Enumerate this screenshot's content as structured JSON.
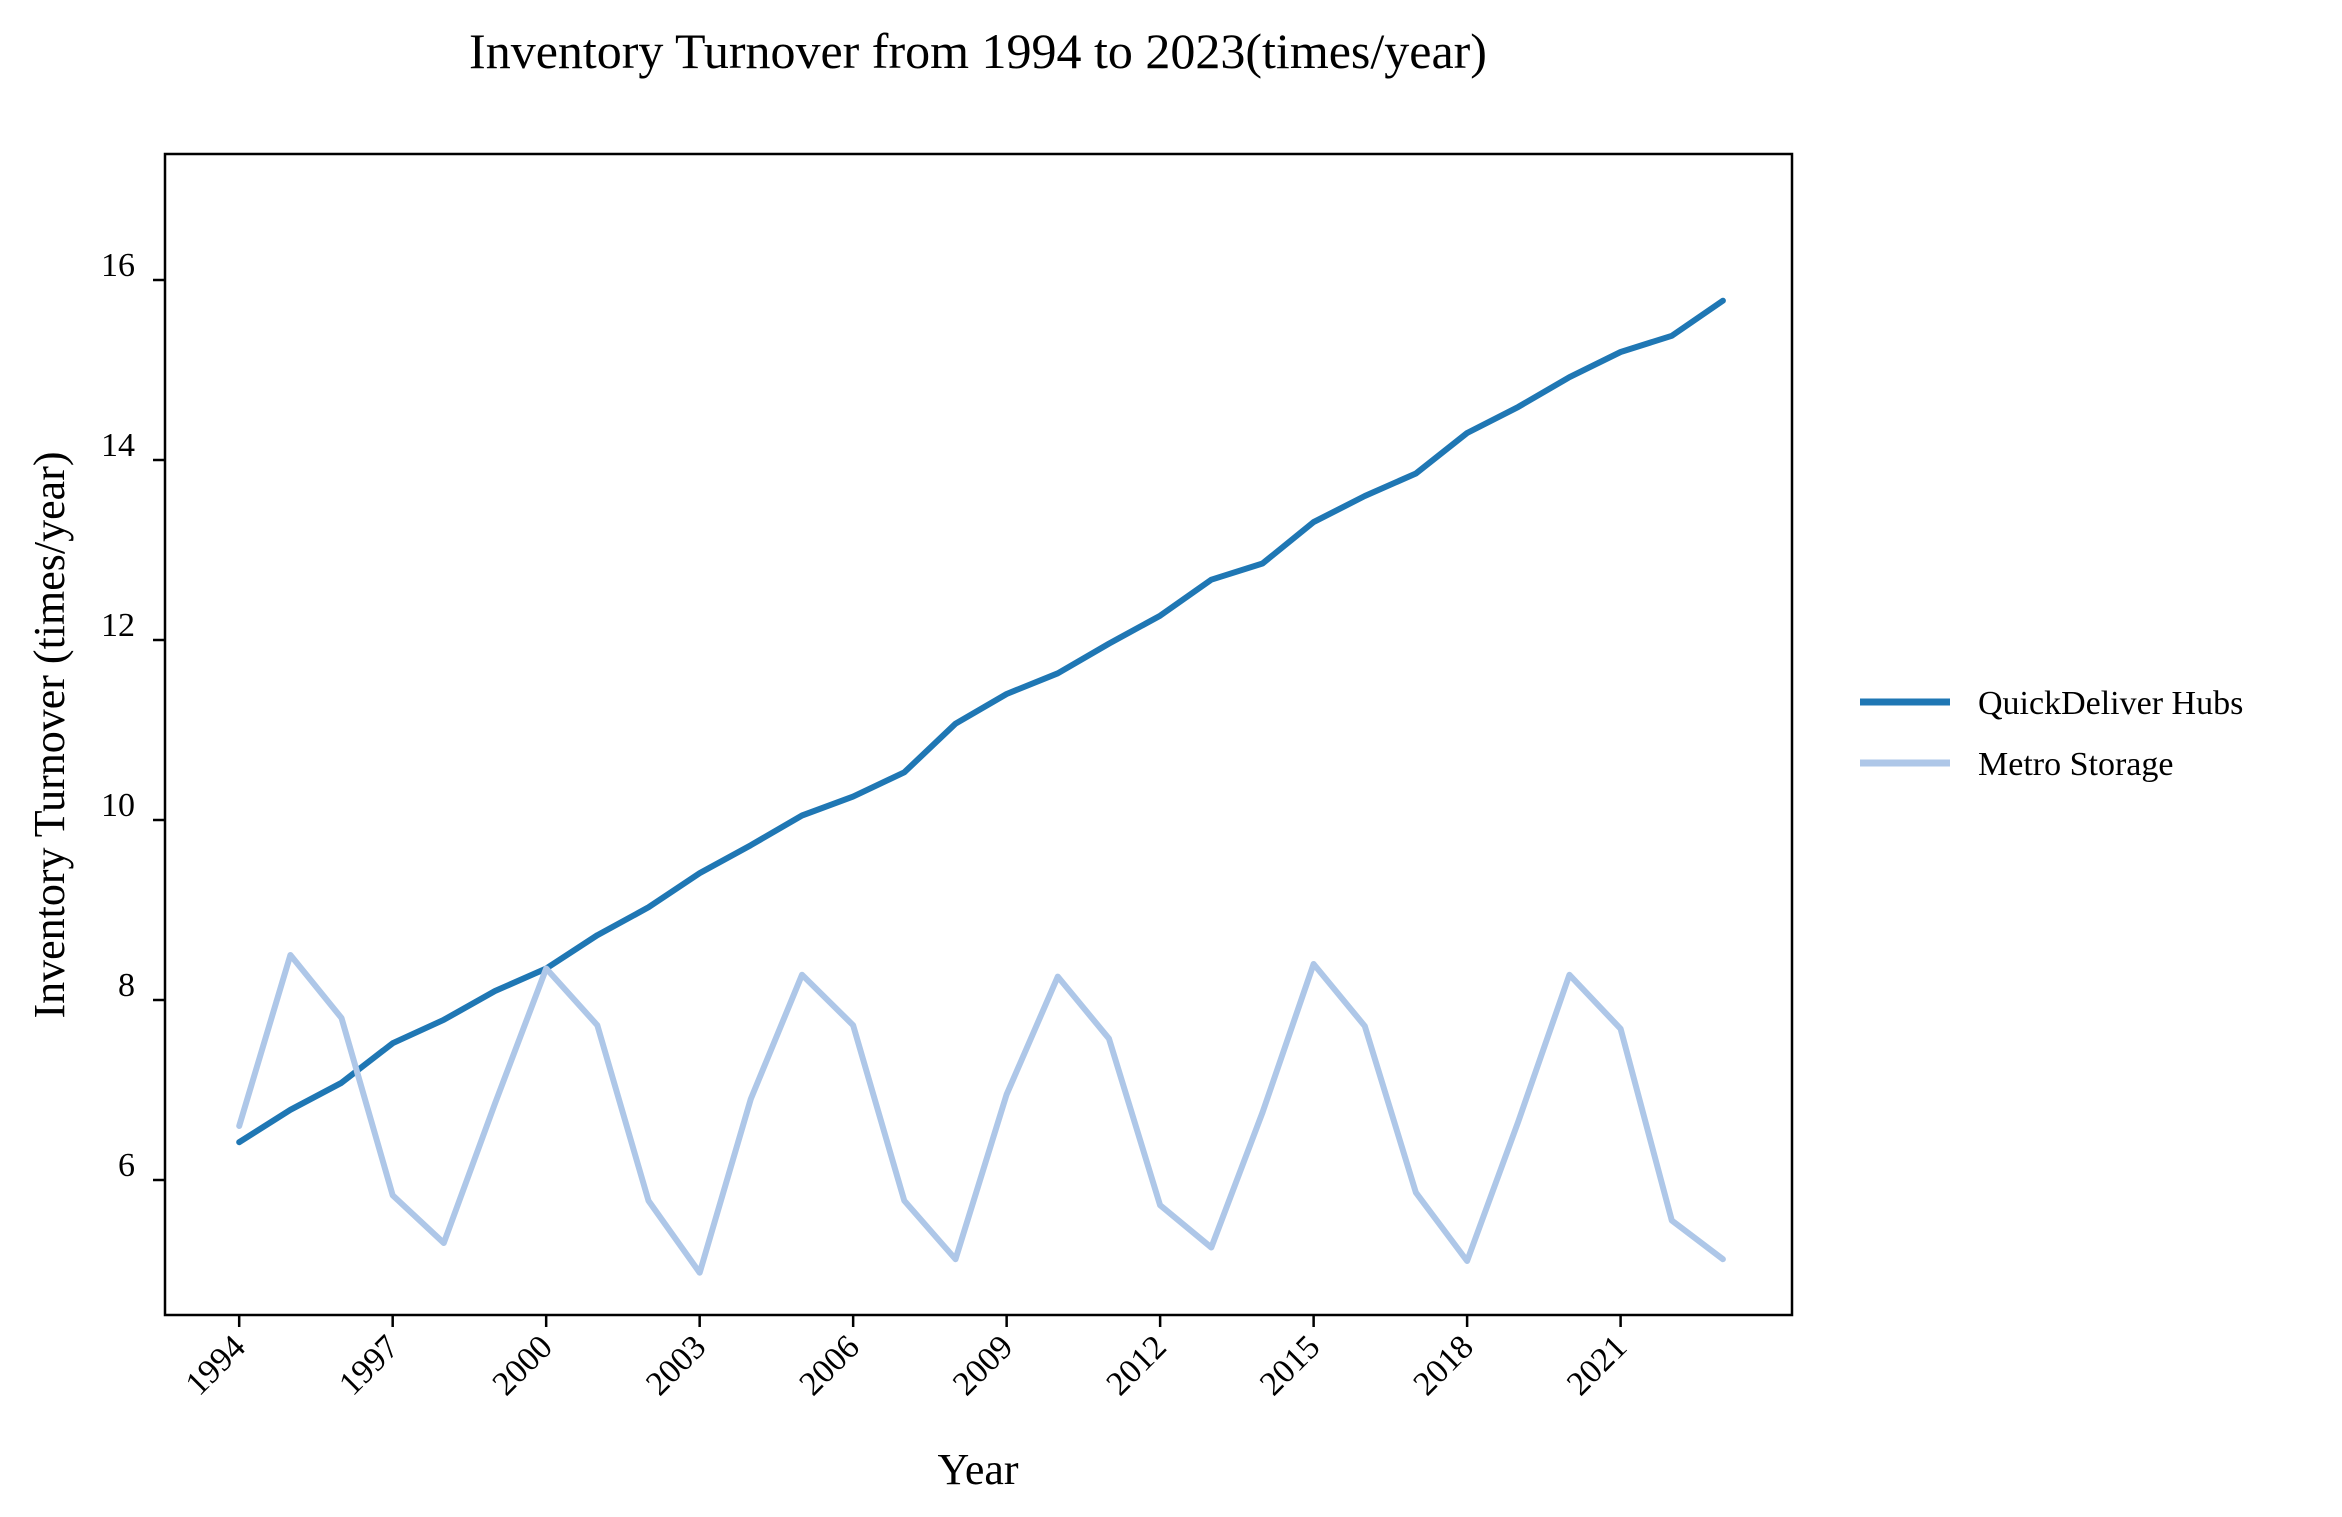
{
  "chart_data": {
    "type": "line",
    "title": "Inventory Turnover from 1994 to 2023(times/year)",
    "xlabel": "Year",
    "ylabel": "Inventory Turnover (times/year)",
    "x": [
      1994,
      1995,
      1996,
      1997,
      1998,
      1999,
      2000,
      2001,
      2002,
      2003,
      2004,
      2005,
      2006,
      2007,
      2008,
      2009,
      2010,
      2011,
      2012,
      2013,
      2014,
      2015,
      2016,
      2017,
      2018,
      2019,
      2020,
      2021,
      2022,
      2023
    ],
    "xticks": [
      "1994",
      "1997",
      "2000",
      "2003",
      "2006",
      "2009",
      "2012",
      "2015",
      "2018",
      "2021"
    ],
    "yticks": [
      "6",
      "8",
      "10",
      "12",
      "14",
      "16"
    ],
    "xlim": [
      1992.55,
      2024.35
    ],
    "ylim": [
      4.5,
      17.4
    ],
    "grid": false,
    "legend_position": "right",
    "series": [
      {
        "name": "QuickDeliver Hubs",
        "color": "#1f77b4",
        "values": [
          6.42,
          6.78,
          7.08,
          7.52,
          7.78,
          8.1,
          8.35,
          8.72,
          9.03,
          9.41,
          9.72,
          10.05,
          10.26,
          10.53,
          11.07,
          11.4,
          11.63,
          11.96,
          12.27,
          12.67,
          12.85,
          13.31,
          13.6,
          13.85,
          14.3,
          14.59,
          14.92,
          15.2,
          15.38,
          15.77
        ]
      },
      {
        "name": "Metro Storage",
        "color": "#aec7e8",
        "values": [
          6.6,
          8.5,
          7.8,
          5.83,
          5.3,
          6.85,
          8.35,
          7.72,
          5.77,
          4.97,
          6.9,
          8.28,
          7.72,
          5.77,
          5.12,
          6.95,
          8.26,
          7.57,
          5.72,
          5.25,
          6.75,
          8.4,
          7.71,
          5.86,
          5.1,
          6.65,
          8.28,
          7.68,
          5.55,
          5.12
        ]
      }
    ]
  }
}
